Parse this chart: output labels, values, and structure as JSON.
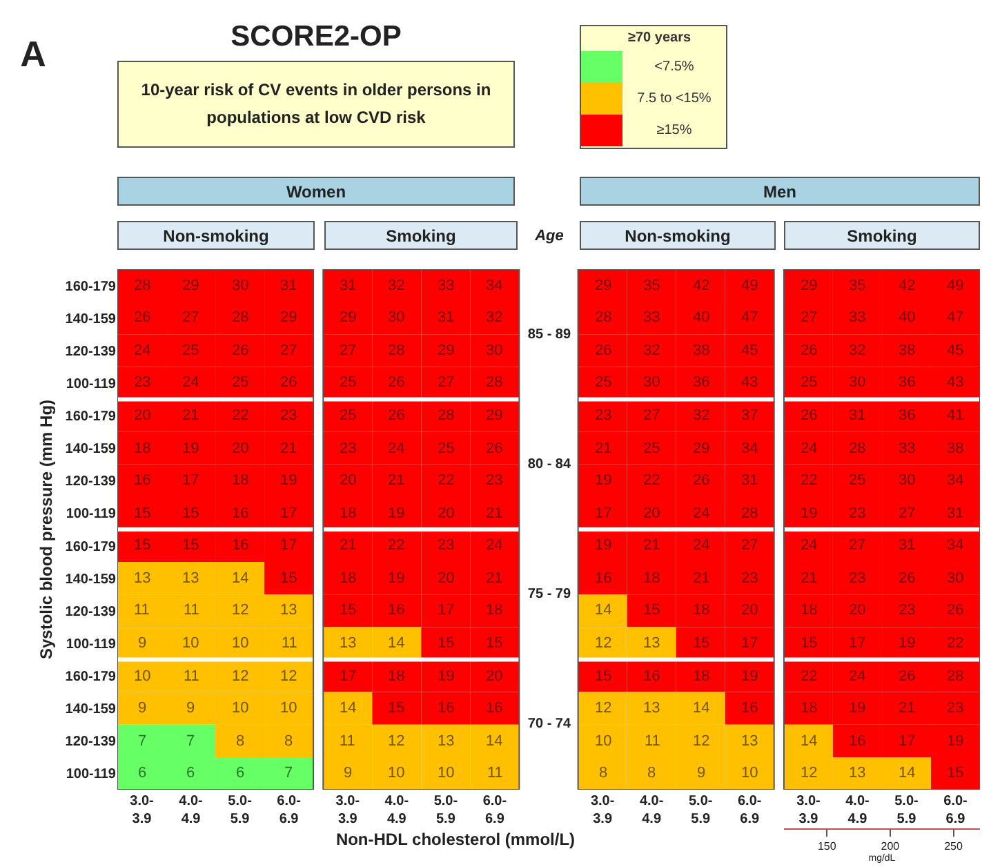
{
  "chart_data": {
    "type": "heatmap",
    "title": "SCORE2-OP",
    "subtitle": "10-year risk of CV events in older persons in populations at low CVD risk",
    "xlabel": "Non-HDL cholesterol (mmol/L)",
    "ylabel": "Systolic blood pressure (mm Hg)",
    "legend_title": "≥70 years",
    "annotations": [
      "A",
      "Women",
      "Men",
      "Non-smoking",
      "Smoking",
      "Age",
      "Non-smoking",
      "Smoking",
      "85 - 89",
      "80 - 84",
      "75 - 79",
      "70 - 74",
      "<7.5%",
      "7.5 to <15%",
      "≥15%"
    ],
    "data_labels": true,
    "x2label": "mg/dL",
    "x2lim": [
      116,
      271
    ],
    "x2ticks": [
      150,
      200,
      250
    ],
    "categories": [
      "3.0-\n3.9",
      "4.0-\n4.9",
      "5.0-\n5.9",
      "6.0-\n6.9",
      "3.0-\n3.9",
      "4.0-\n4.9",
      "5.0-\n5.9",
      "6.0-\n6.9",
      "3.0-\n3.9",
      "4.0-\n4.9",
      "5.0-\n5.9",
      "6.0-\n6.9",
      "3.0-\n3.9",
      "4.0-\n4.9",
      "5.0-\n5.9",
      "6.0-\n6.9"
    ],
    "y_categories": [
      "160-179",
      "140-159",
      "120-139",
      "100-119",
      "160-179",
      "140-159",
      "120-139",
      "100-119",
      "160-179",
      "140-159",
      "120-139",
      "100-119",
      "160-179",
      "140-159",
      "120-139",
      "100-119"
    ],
    "cells": [
      [
        28,
        29,
        30,
        31,
        31,
        32,
        33,
        34,
        29,
        35,
        42,
        49,
        29,
        35,
        42,
        49
      ],
      [
        26,
        27,
        28,
        29,
        29,
        30,
        31,
        32,
        28,
        33,
        40,
        47,
        27,
        33,
        40,
        47
      ],
      [
        24,
        25,
        26,
        27,
        27,
        28,
        29,
        30,
        26,
        32,
        38,
        45,
        26,
        32,
        38,
        45
      ],
      [
        23,
        24,
        25,
        26,
        25,
        26,
        27,
        28,
        25,
        30,
        36,
        43,
        25,
        30,
        36,
        43
      ],
      [
        20,
        21,
        22,
        23,
        25,
        26,
        28,
        29,
        23,
        27,
        32,
        37,
        26,
        31,
        36,
        41
      ],
      [
        18,
        19,
        20,
        21,
        23,
        24,
        25,
        26,
        21,
        25,
        29,
        34,
        24,
        28,
        33,
        38
      ],
      [
        16,
        17,
        18,
        19,
        20,
        21,
        22,
        23,
        19,
        22,
        26,
        31,
        22,
        25,
        30,
        34
      ],
      [
        15,
        15,
        16,
        17,
        18,
        19,
        20,
        21,
        17,
        20,
        24,
        28,
        19,
        23,
        27,
        31
      ],
      [
        15,
        15,
        16,
        17,
        21,
        22,
        23,
        24,
        19,
        21,
        24,
        27,
        24,
        27,
        31,
        34
      ],
      [
        13,
        13,
        14,
        15,
        18,
        19,
        20,
        21,
        16,
        18,
        21,
        23,
        21,
        23,
        26,
        30
      ],
      [
        11,
        11,
        12,
        13,
        15,
        16,
        17,
        18,
        14,
        15,
        18,
        20,
        18,
        20,
        23,
        26
      ],
      [
        9,
        10,
        10,
        11,
        13,
        14,
        15,
        15,
        12,
        13,
        15,
        17,
        15,
        17,
        19,
        22
      ],
      [
        10,
        11,
        12,
        12,
        17,
        18,
        19,
        20,
        15,
        16,
        18,
        19,
        22,
        24,
        26,
        28
      ],
      [
        9,
        9,
        10,
        10,
        14,
        15,
        16,
        16,
        12,
        13,
        14,
        16,
        18,
        19,
        21,
        23
      ],
      [
        7,
        7,
        8,
        8,
        11,
        12,
        13,
        14,
        10,
        11,
        12,
        13,
        14,
        16,
        17,
        19
      ],
      [
        6,
        6,
        6,
        7,
        9,
        10,
        10,
        11,
        8,
        8,
        9,
        10,
        12,
        13,
        14,
        15
      ]
    ],
    "colors": [
      [
        "#ff0000",
        "#ff0000",
        "#ff0000",
        "#ff0000",
        "#ff0000",
        "#ff0000",
        "#ff0000",
        "#ff0000",
        "#ff0000",
        "#ff0000",
        "#ff0000",
        "#ff0000",
        "#ff0000",
        "#ff0000",
        "#ff0000",
        "#ff0000"
      ],
      [
        "#ff0000",
        "#ff0000",
        "#ff0000",
        "#ff0000",
        "#ff0000",
        "#ff0000",
        "#ff0000",
        "#ff0000",
        "#ff0000",
        "#ff0000",
        "#ff0000",
        "#ff0000",
        "#ff0000",
        "#ff0000",
        "#ff0000",
        "#ff0000"
      ],
      [
        "#ff0000",
        "#ff0000",
        "#ff0000",
        "#ff0000",
        "#ff0000",
        "#ff0000",
        "#ff0000",
        "#ff0000",
        "#ff0000",
        "#ff0000",
        "#ff0000",
        "#ff0000",
        "#ff0000",
        "#ff0000",
        "#ff0000",
        "#ff0000"
      ],
      [
        "#ff0000",
        "#ff0000",
        "#ff0000",
        "#ff0000",
        "#ff0000",
        "#ff0000",
        "#ff0000",
        "#ff0000",
        "#ff0000",
        "#ff0000",
        "#ff0000",
        "#ff0000",
        "#ff0000",
        "#ff0000",
        "#ff0000",
        "#ff0000"
      ],
      [
        "#ff0000",
        "#ff0000",
        "#ff0000",
        "#ff0000",
        "#ff0000",
        "#ff0000",
        "#ff0000",
        "#ff0000",
        "#ff0000",
        "#ff0000",
        "#ff0000",
        "#ff0000",
        "#ff0000",
        "#ff0000",
        "#ff0000",
        "#ff0000"
      ],
      [
        "#ff0000",
        "#ff0000",
        "#ff0000",
        "#ff0000",
        "#ff0000",
        "#ff0000",
        "#ff0000",
        "#ff0000",
        "#ff0000",
        "#ff0000",
        "#ff0000",
        "#ff0000",
        "#ff0000",
        "#ff0000",
        "#ff0000",
        "#ff0000"
      ],
      [
        "#ff0000",
        "#ff0000",
        "#ff0000",
        "#ff0000",
        "#ff0000",
        "#ff0000",
        "#ff0000",
        "#ff0000",
        "#ff0000",
        "#ff0000",
        "#ff0000",
        "#ff0000",
        "#ff0000",
        "#ff0000",
        "#ff0000",
        "#ff0000"
      ],
      [
        "#ff0000",
        "#ff0000",
        "#ff0000",
        "#ff0000",
        "#ff0000",
        "#ff0000",
        "#ff0000",
        "#ff0000",
        "#ff0000",
        "#ff0000",
        "#ff0000",
        "#ff0000",
        "#ff0000",
        "#ff0000",
        "#ff0000",
        "#ff0000"
      ],
      [
        "#ff0000",
        "#ff0000",
        "#ff0000",
        "#ff0000",
        "#ff0000",
        "#ff0000",
        "#ff0000",
        "#ff0000",
        "#ff0000",
        "#ff0000",
        "#ff0000",
        "#ff0000",
        "#ff0000",
        "#ff0000",
        "#ff0000",
        "#ff0000"
      ],
      [
        "#ffc000",
        "#ffc000",
        "#ffc000",
        "#ff0000",
        "#ff0000",
        "#ff0000",
        "#ff0000",
        "#ff0000",
        "#ff0000",
        "#ff0000",
        "#ff0000",
        "#ff0000",
        "#ff0000",
        "#ff0000",
        "#ff0000",
        "#ff0000"
      ],
      [
        "#ffc000",
        "#ffc000",
        "#ffc000",
        "#ffc000",
        "#ff0000",
        "#ff0000",
        "#ff0000",
        "#ff0000",
        "#ffc000",
        "#ff0000",
        "#ff0000",
        "#ff0000",
        "#ff0000",
        "#ff0000",
        "#ff0000",
        "#ff0000"
      ],
      [
        "#ffc000",
        "#ffc000",
        "#ffc000",
        "#ffc000",
        "#ffc000",
        "#ffc000",
        "#ff0000",
        "#ff0000",
        "#ffc000",
        "#ffc000",
        "#ff0000",
        "#ff0000",
        "#ff0000",
        "#ff0000",
        "#ff0000",
        "#ff0000"
      ],
      [
        "#ffc000",
        "#ffc000",
        "#ffc000",
        "#ffc000",
        "#ff0000",
        "#ff0000",
        "#ff0000",
        "#ff0000",
        "#ff0000",
        "#ff0000",
        "#ff0000",
        "#ff0000",
        "#ff0000",
        "#ff0000",
        "#ff0000",
        "#ff0000"
      ],
      [
        "#ffc000",
        "#ffc000",
        "#ffc000",
        "#ffc000",
        "#ffc000",
        "#ff0000",
        "#ff0000",
        "#ff0000",
        "#ffc000",
        "#ffc000",
        "#ffc000",
        "#ff0000",
        "#ff0000",
        "#ff0000",
        "#ff0000",
        "#ff0000"
      ],
      [
        "#66ff66",
        "#66ff66",
        "#ffc000",
        "#ffc000",
        "#ffc000",
        "#ffc000",
        "#ffc000",
        "#ffc000",
        "#ffc000",
        "#ffc000",
        "#ffc000",
        "#ffc000",
        "#ffc000",
        "#ff0000",
        "#ff0000",
        "#ff0000"
      ],
      [
        "#66ff66",
        "#66ff66",
        "#66ff66",
        "#66ff66",
        "#ffc000",
        "#ffc000",
        "#ffc000",
        "#ffc000",
        "#ffc000",
        "#ffc000",
        "#ffc000",
        "#ffc000",
        "#ffc000",
        "#ffc000",
        "#ffc000",
        "#ff0000"
      ]
    ]
  }
}
